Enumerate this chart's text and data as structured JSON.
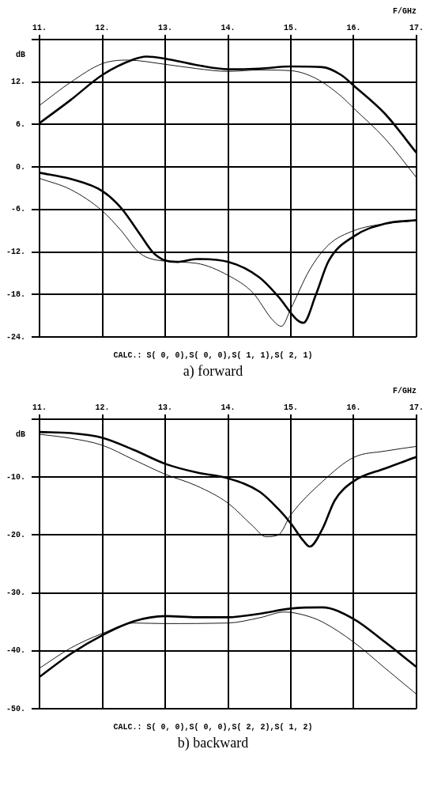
{
  "chart_data": [
    {
      "type": "line",
      "xlabel": "F/GHz",
      "ylabel": "dB",
      "xlim": [
        11,
        17
      ],
      "xticks": [
        {
          "value": 11,
          "label": "11."
        },
        {
          "value": 12,
          "label": "12."
        },
        {
          "value": 13,
          "label": "13."
        },
        {
          "value": 14,
          "label": "14."
        },
        {
          "value": 15,
          "label": "15."
        },
        {
          "value": 16,
          "label": "16."
        },
        {
          "value": 17,
          "label": "17."
        }
      ],
      "ylim": [
        -24,
        18
      ],
      "yticks": [
        {
          "value": -24,
          "label": "-24."
        },
        {
          "value": -18,
          "label": "-18."
        },
        {
          "value": -12,
          "label": "-12."
        },
        {
          "value": -6,
          "label": "-6."
        },
        {
          "value": 0,
          "label": "0."
        },
        {
          "value": 6,
          "label": "6."
        },
        {
          "value": 12,
          "label": "12."
        },
        {
          "value": 18,
          "label": null
        }
      ],
      "grid": true,
      "marker": "none",
      "line_style": "solid",
      "annotations": [
        "CALC.: S( 0, 0),S( 0, 0),S( 1, 1),S( 2, 1)",
        "a) forward"
      ],
      "series": [
        {
          "color": "#000000",
          "x": [
            11,
            11.5,
            12,
            12.5,
            12.7,
            13,
            13.5,
            14,
            14.5,
            15,
            15.5,
            15.8,
            16,
            16.5,
            17
          ],
          "values": [
            6.2,
            9.5,
            13,
            15.2,
            15.6,
            15.3,
            14.4,
            13.8,
            13.9,
            14.2,
            14.1,
            13,
            11.5,
            7.5,
            2
          ]
        },
        {
          "color": "#000000",
          "x": [
            11,
            11.5,
            12,
            12.4,
            13,
            13.5,
            14,
            14.5,
            15,
            15.4,
            15.8,
            16,
            16.5,
            17
          ],
          "values": [
            8.7,
            12,
            14.6,
            15.1,
            14.5,
            13.9,
            13.5,
            13.7,
            13.6,
            12.5,
            10,
            8.3,
            4,
            -1.5
          ]
        },
        {
          "color": "#000000",
          "x": [
            11,
            11.5,
            12,
            12.3,
            12.6,
            12.8,
            13,
            13.2,
            13.5,
            14,
            14.5,
            14.8,
            15.1,
            15.2,
            15.4,
            15.6,
            16,
            16.5,
            17
          ],
          "values": [
            -0.8,
            -1.7,
            -3.4,
            -5.8,
            -9.5,
            -12,
            -13.2,
            -13.4,
            -13,
            -13.4,
            -15.6,
            -18.3,
            -21.6,
            -22,
            -18,
            -13.3,
            -9.8,
            -8,
            -7.5
          ]
        },
        {
          "color": "#000000",
          "x": [
            11,
            11.5,
            12,
            12.3,
            12.6,
            13,
            13.5,
            14,
            14.4,
            14.7,
            14.85,
            15,
            15.3,
            15.6,
            16,
            16.5,
            17
          ],
          "values": [
            -1.6,
            -3.2,
            -6.2,
            -9,
            -12.2,
            -13.3,
            -13.6,
            -15.3,
            -17.8,
            -21.5,
            -22.5,
            -20,
            -14.5,
            -11,
            -9,
            -8,
            -7.6
          ]
        }
      ]
    },
    {
      "type": "line",
      "xlabel": "F/GHz",
      "ylabel": "dB",
      "xlim": [
        11,
        17
      ],
      "xticks": [
        {
          "value": 11,
          "label": "11."
        },
        {
          "value": 12,
          "label": "12."
        },
        {
          "value": 13,
          "label": "13."
        },
        {
          "value": 14,
          "label": "14."
        },
        {
          "value": 15,
          "label": "15."
        },
        {
          "value": 16,
          "label": "16."
        },
        {
          "value": 17,
          "label": "17."
        }
      ],
      "ylim": [
        -50,
        0
      ],
      "yticks": [
        {
          "value": -50,
          "label": "-50."
        },
        {
          "value": -40,
          "label": "-40."
        },
        {
          "value": -30,
          "label": "-30."
        },
        {
          "value": -20,
          "label": "-20."
        },
        {
          "value": -10,
          "label": "-10."
        },
        {
          "value": 0,
          "label": null
        }
      ],
      "grid": true,
      "marker": "none",
      "line_style": "solid",
      "annotations": [
        "CALC.: S( 0, 0),S( 0, 0),S( 2, 2),S( 1, 2)",
        "b) backward"
      ],
      "series": [
        {
          "color": "#000000",
          "x": [
            11,
            11.5,
            12,
            12.5,
            13,
            13.5,
            14,
            14.5,
            14.8,
            15,
            15.2,
            15.3,
            15.5,
            15.7,
            16,
            16.5,
            17
          ],
          "values": [
            -2.2,
            -2.4,
            -3.2,
            -5.3,
            -7.7,
            -9.2,
            -10.2,
            -12.5,
            -15.5,
            -18,
            -21,
            -22,
            -19,
            -14,
            -10.7,
            -8.5,
            -6.5
          ]
        },
        {
          "color": "#000000",
          "x": [
            11,
            11.5,
            12,
            12.5,
            13,
            13.5,
            14,
            14.4,
            14.6,
            14.8,
            15,
            15.5,
            16,
            16.5,
            17
          ],
          "values": [
            -2.6,
            -3.3,
            -4.5,
            -7,
            -9.5,
            -11.5,
            -14.5,
            -18.5,
            -20.3,
            -20,
            -16.5,
            -10.8,
            -6.6,
            -5.5,
            -4.7
          ]
        },
        {
          "color": "#000000",
          "x": [
            11,
            11.5,
            12,
            12.5,
            13,
            13.5,
            14,
            14.5,
            15,
            15.5,
            16,
            16.5,
            17
          ],
          "values": [
            -44.5,
            -40.5,
            -37.3,
            -34.9,
            -34,
            -34.2,
            -34.2,
            -33.6,
            -32.7,
            -32.5,
            -34.5,
            -38.5,
            -42.8
          ]
        },
        {
          "color": "#000000",
          "x": [
            11,
            11.5,
            12,
            12.5,
            13,
            14,
            14.5,
            14.9,
            15.2,
            15.5,
            16,
            16.5,
            17
          ],
          "values": [
            -43,
            -39.5,
            -37,
            -35.2,
            -35.3,
            -35.2,
            -34.3,
            -33.3,
            -33.8,
            -35,
            -38.5,
            -43,
            -47.5
          ]
        }
      ]
    }
  ]
}
